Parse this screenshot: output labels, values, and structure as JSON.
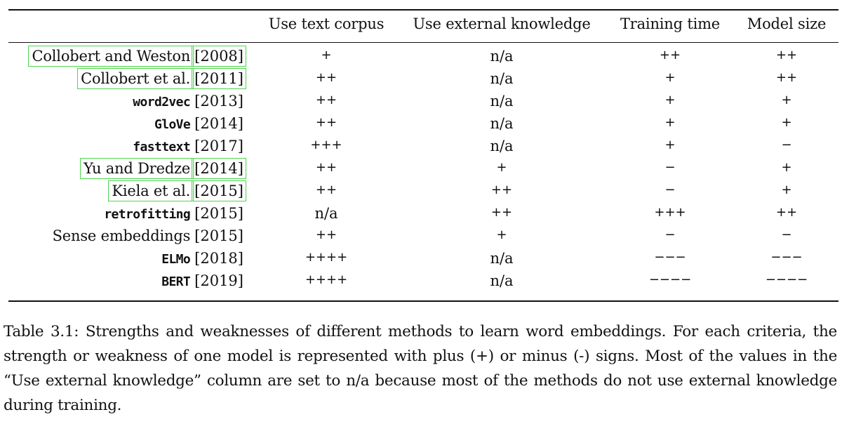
{
  "table": {
    "columns": [
      {
        "key": "method",
        "label": ""
      },
      {
        "key": "text_corpus",
        "label": "Use text corpus"
      },
      {
        "key": "external_knowledge",
        "label": "Use external knowledge"
      },
      {
        "key": "training_time",
        "label": "Training time"
      },
      {
        "key": "model_size",
        "label": "Model size"
      }
    ],
    "rows": [
      {
        "method": "Collobert and Weston",
        "mono": false,
        "year": "[2008]",
        "cells": [
          "+",
          "n/a",
          "++",
          "++"
        ]
      },
      {
        "method": "Collobert et al.",
        "mono": false,
        "year": "[2011]",
        "cells": [
          "++",
          "n/a",
          "+",
          "++"
        ]
      },
      {
        "method": "word2vec",
        "mono": true,
        "year": "[2013]",
        "cells": [
          "++",
          "n/a",
          "+",
          "+"
        ]
      },
      {
        "method": "GloVe",
        "mono": true,
        "year": "[2014]",
        "cells": [
          "++",
          "n/a",
          "+",
          "+"
        ]
      },
      {
        "method": "fasttext",
        "mono": true,
        "year": "[2017]",
        "cells": [
          "+++",
          "n/a",
          "+",
          "−"
        ]
      },
      {
        "method": "Yu and Dredze",
        "mono": false,
        "year": "[2014]",
        "cells": [
          "++",
          "+",
          "−",
          "+"
        ]
      },
      {
        "method": "Kiela et al.",
        "mono": false,
        "year": "[2015]",
        "cells": [
          "++",
          "++",
          "−",
          "+"
        ]
      },
      {
        "method": "retrofitting",
        "mono": true,
        "year": "[2015]",
        "cells": [
          "n/a",
          "++",
          "+++",
          "++"
        ]
      },
      {
        "method": "Sense embeddings",
        "mono": false,
        "year": "[2015]",
        "cells": [
          "++",
          "+",
          "−",
          "−"
        ]
      },
      {
        "method": "ELMo",
        "mono": true,
        "year": "[2018]",
        "cells": [
          "++++",
          "n/a",
          "−−−",
          "−−−"
        ]
      },
      {
        "method": "BERT",
        "mono": true,
        "year": "[2019]",
        "cells": [
          "++++",
          "n/a",
          "−−−−",
          "−−−−"
        ]
      }
    ]
  },
  "caption": {
    "text": "Table 3.1: Strengths and weaknesses of different methods to learn word embeddings. For each criteria, the strength or weakness of one model is represented with plus (+) or minus (-) signs.  Most of the values in the “Use external knowledge” column are set to n/a because most of the methods do not use external knowledge during training."
  }
}
